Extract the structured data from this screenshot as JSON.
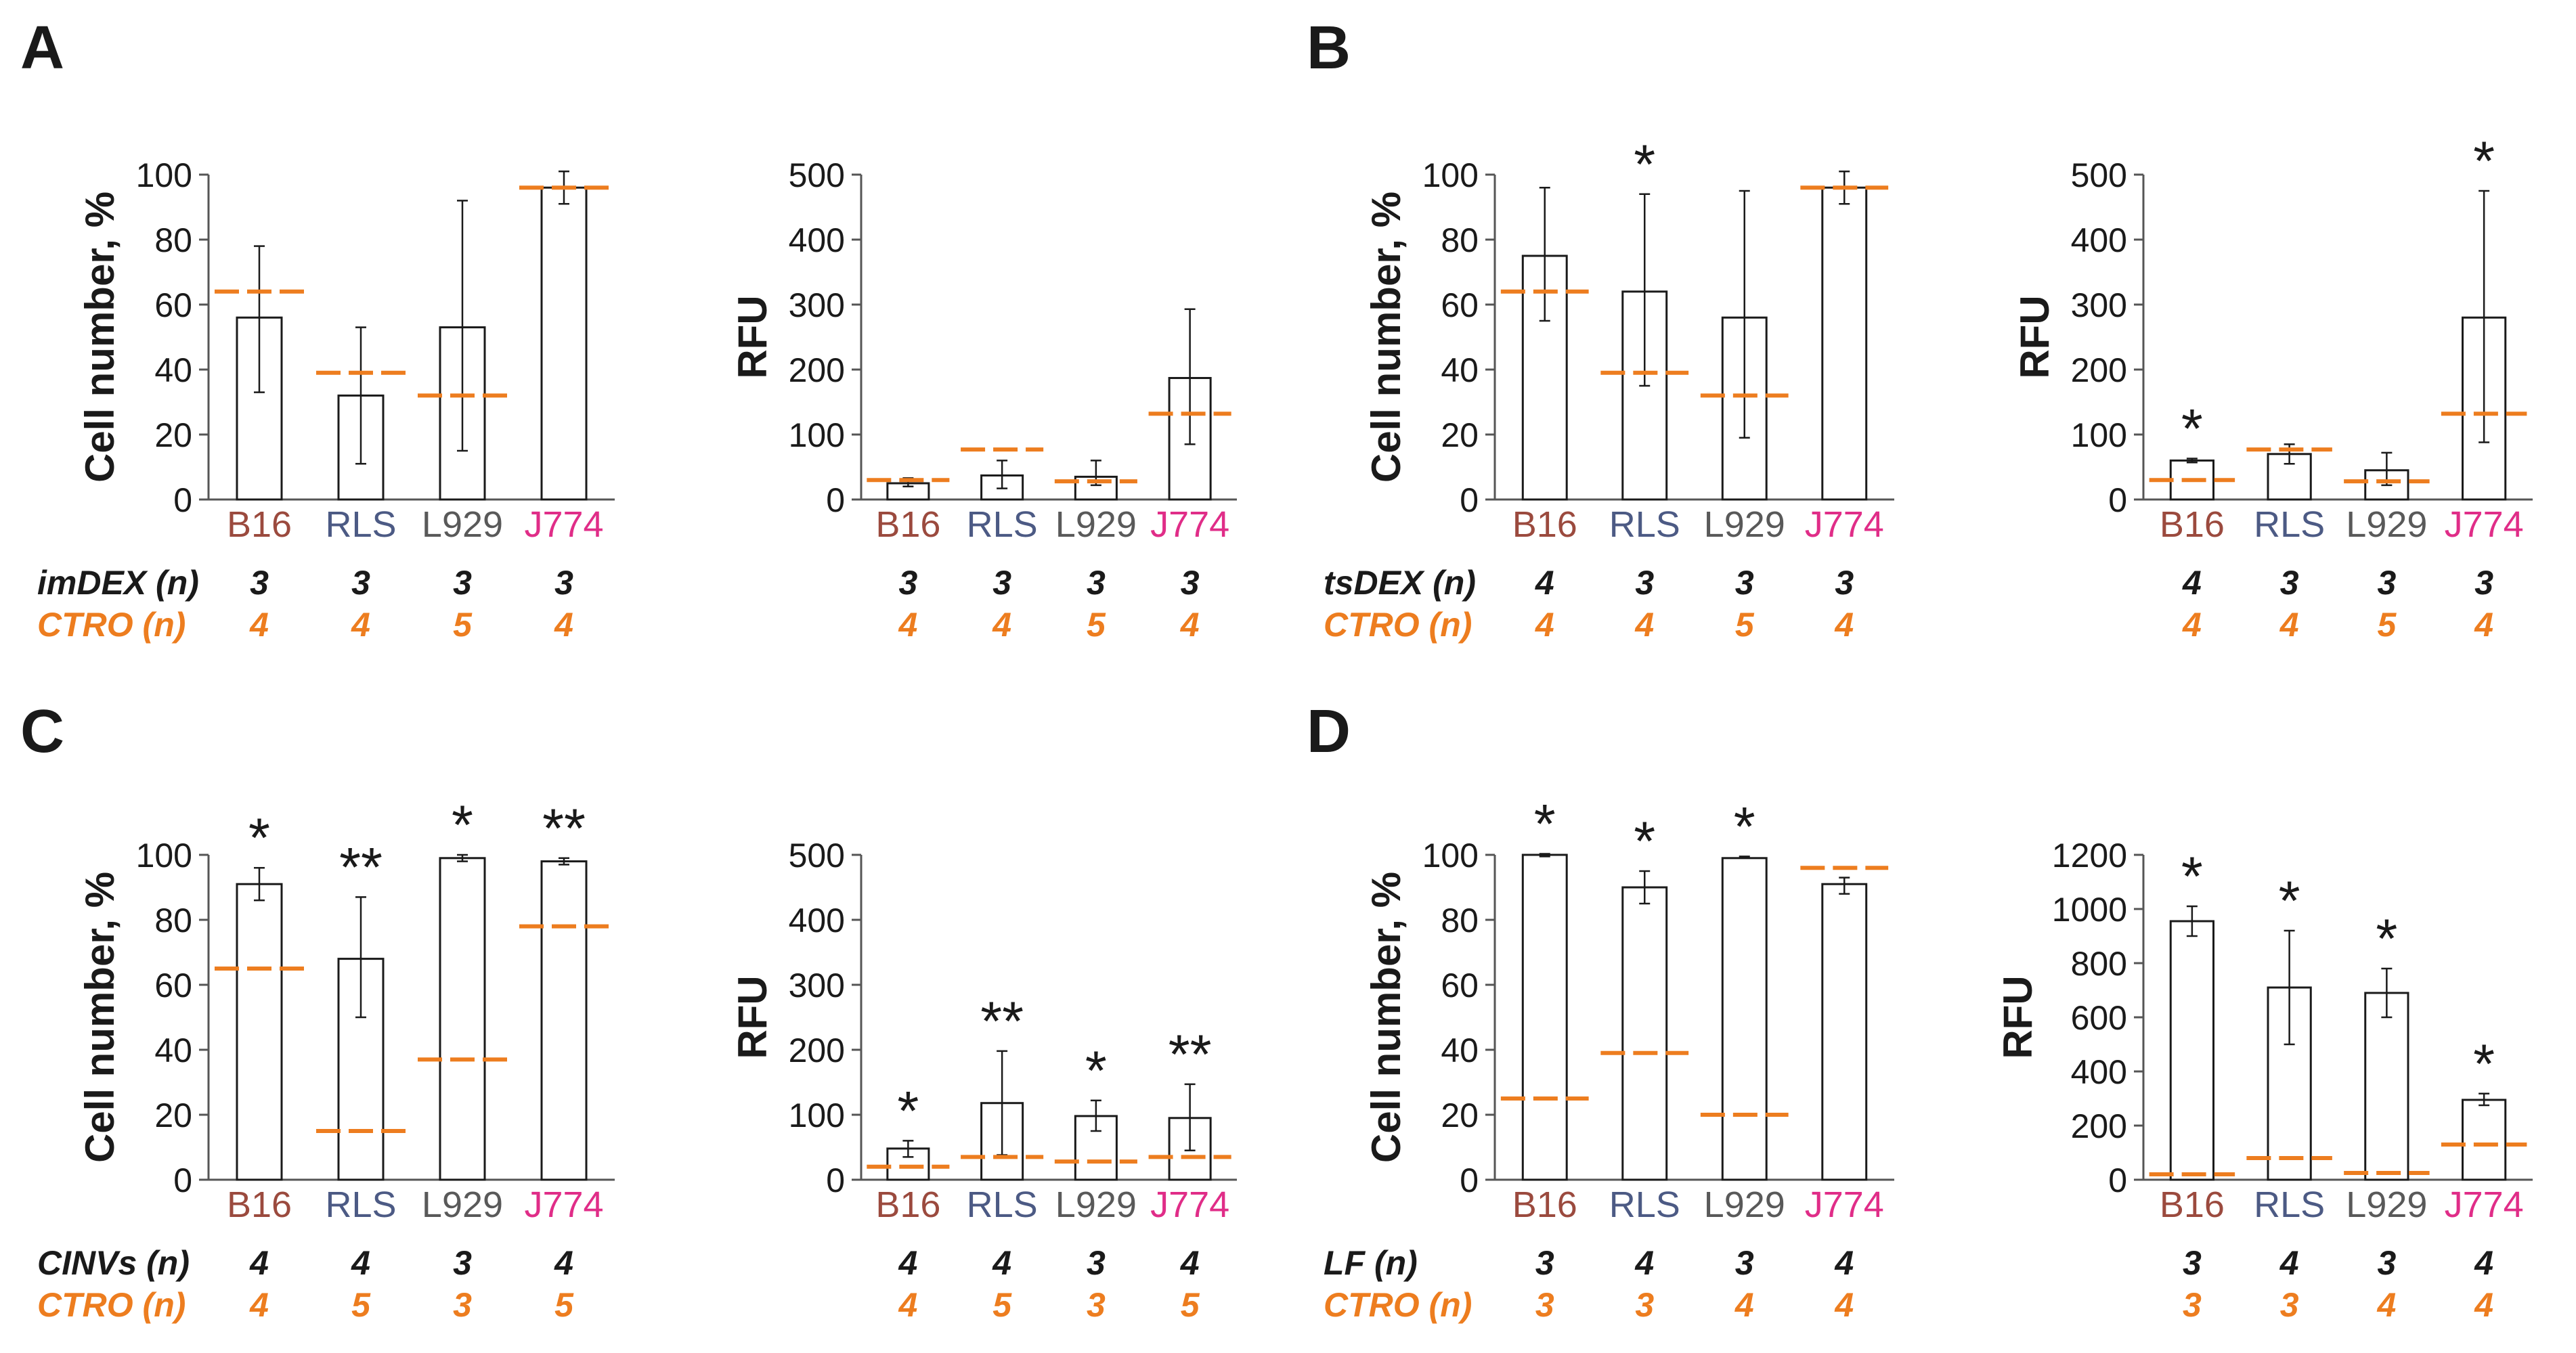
{
  "colors": {
    "bar": "#1a1a1a",
    "control": "#ed7d1f",
    "B16": "#9b4a3e",
    "RLS": "#4c5a84",
    "L929": "#595959",
    "J774": "#e02d88",
    "n_black": "#1a1a1a",
    "n_orange": "#ed7d1f"
  },
  "panels": [
    {
      "label": "A",
      "treatment_label": "imDEX (n)",
      "control_label": "CTRO (n)",
      "charts": [
        {
          "type": "bar",
          "ylabel": "Cell number, %",
          "ylim": [
            0,
            100
          ],
          "yticks": [
            "0",
            "20",
            "40",
            "60",
            "80",
            "100"
          ],
          "categories": [
            "B16",
            "RLS",
            "L929",
            "J774"
          ],
          "values": [
            56,
            32,
            53,
            96
          ],
          "err_low": [
            33,
            11,
            15,
            91
          ],
          "err_high": [
            78,
            53,
            92,
            101
          ],
          "control": [
            64,
            39,
            32,
            96
          ],
          "stars": [
            "",
            "",
            "",
            ""
          ],
          "n_treat": [
            "3",
            "3",
            "3",
            "3"
          ],
          "n_ctrl": [
            "4",
            "4",
            "5",
            "4"
          ]
        },
        {
          "type": "bar",
          "ylabel": "RFU",
          "ylim": [
            0,
            500
          ],
          "yticks": [
            "0",
            "100",
            "200",
            "300",
            "400",
            "500"
          ],
          "categories": [
            "B16",
            "RLS",
            "L929",
            "J774"
          ],
          "values": [
            25,
            37,
            35,
            187
          ],
          "err_low": [
            20,
            17,
            22,
            85
          ],
          "err_high": [
            33,
            60,
            60,
            293
          ],
          "control": [
            30,
            77,
            28,
            132
          ],
          "stars": [
            "",
            "",
            "",
            ""
          ],
          "n_treat": [
            "3",
            "3",
            "3",
            "3"
          ],
          "n_ctrl": [
            "4",
            "4",
            "5",
            "4"
          ]
        }
      ]
    },
    {
      "label": "B",
      "treatment_label": "tsDEX (n)",
      "control_label": "CTRO (n)",
      "charts": [
        {
          "type": "bar",
          "ylabel": "Cell number, %",
          "ylim": [
            0,
            100
          ],
          "yticks": [
            "0",
            "20",
            "40",
            "60",
            "80",
            "100"
          ],
          "categories": [
            "B16",
            "RLS",
            "L929",
            "J774"
          ],
          "values": [
            75,
            64,
            56,
            96
          ],
          "err_low": [
            55,
            35,
            19,
            91
          ],
          "err_high": [
            96,
            94,
            95,
            101
          ],
          "control": [
            64,
            39,
            32,
            96
          ],
          "stars": [
            "",
            "*",
            "",
            ""
          ],
          "n_treat": [
            "4",
            "3",
            "3",
            "3"
          ],
          "n_ctrl": [
            "4",
            "4",
            "5",
            "4"
          ]
        },
        {
          "type": "bar",
          "ylabel": "RFU",
          "ylim": [
            0,
            500
          ],
          "yticks": [
            "0",
            "100",
            "200",
            "300",
            "400",
            "500"
          ],
          "categories": [
            "B16",
            "RLS",
            "L929",
            "J774"
          ],
          "values": [
            60,
            70,
            45,
            280
          ],
          "err_low": [
            57,
            55,
            22,
            88
          ],
          "err_high": [
            63,
            85,
            72,
            475
          ],
          "control": [
            30,
            77,
            28,
            132
          ],
          "stars": [
            "*",
            "",
            "",
            "*"
          ],
          "n_treat": [
            "4",
            "3",
            "3",
            "3"
          ],
          "n_ctrl": [
            "4",
            "4",
            "5",
            "4"
          ]
        }
      ]
    },
    {
      "label": "C",
      "treatment_label": "CINVs (n)",
      "control_label": "CTRO (n)",
      "charts": [
        {
          "type": "bar",
          "ylabel": "Cell number, %",
          "ylim": [
            0,
            100
          ],
          "yticks": [
            "0",
            "20",
            "40",
            "60",
            "80",
            "100"
          ],
          "categories": [
            "B16",
            "RLS",
            "L929",
            "J774"
          ],
          "values": [
            91,
            68,
            99,
            98
          ],
          "err_low": [
            86,
            50,
            98,
            97
          ],
          "err_high": [
            96,
            87,
            100,
            99
          ],
          "control": [
            65,
            15,
            37,
            78
          ],
          "stars": [
            "*",
            "**",
            "*",
            "**"
          ],
          "n_treat": [
            "4",
            "4",
            "3",
            "4"
          ],
          "n_ctrl": [
            "4",
            "5",
            "3",
            "5"
          ]
        },
        {
          "type": "bar",
          "ylabel": "RFU",
          "ylim": [
            0,
            500
          ],
          "yticks": [
            "0",
            "100",
            "200",
            "300",
            "400",
            "500"
          ],
          "categories": [
            "B16",
            "RLS",
            "L929",
            "J774"
          ],
          "values": [
            48,
            118,
            98,
            95
          ],
          "err_low": [
            35,
            38,
            75,
            45
          ],
          "err_high": [
            60,
            198,
            122,
            147
          ],
          "control": [
            20,
            35,
            28,
            35
          ],
          "stars": [
            "*",
            "**",
            "*",
            "**"
          ],
          "n_treat": [
            "4",
            "4",
            "3",
            "4"
          ],
          "n_ctrl": [
            "4",
            "5",
            "3",
            "5"
          ]
        }
      ]
    },
    {
      "label": "D",
      "treatment_label": "LF (n)",
      "control_label": "CTRO (n)",
      "charts": [
        {
          "type": "bar",
          "ylabel": "Cell number, %",
          "ylim": [
            0,
            100
          ],
          "yticks": [
            "0",
            "20",
            "40",
            "60",
            "80",
            "100"
          ],
          "categories": [
            "B16",
            "RLS",
            "L929",
            "J774"
          ],
          "values": [
            100,
            90,
            99,
            91
          ],
          "err_low": [
            99.5,
            85,
            99,
            88
          ],
          "err_high": [
            100.3,
            95,
            99.5,
            93
          ],
          "control": [
            25,
            39,
            20,
            96
          ],
          "stars": [
            "*",
            "*",
            "*",
            ""
          ],
          "n_treat": [
            "3",
            "4",
            "3",
            "4"
          ],
          "n_ctrl": [
            "3",
            "3",
            "4",
            "4"
          ]
        },
        {
          "type": "bar",
          "ylabel": "RFU",
          "ylim": [
            0,
            1200
          ],
          "yticks": [
            "0",
            "200",
            "400",
            "600",
            "800",
            "1000",
            "1200"
          ],
          "categories": [
            "B16",
            "RLS",
            "L929",
            "J774"
          ],
          "values": [
            955,
            710,
            690,
            295
          ],
          "err_low": [
            900,
            500,
            600,
            275
          ],
          "err_high": [
            1010,
            920,
            780,
            318
          ],
          "control": [
            20,
            80,
            25,
            130
          ],
          "stars": [
            "*",
            "*",
            "*",
            "*"
          ],
          "n_treat": [
            "3",
            "4",
            "3",
            "4"
          ],
          "n_ctrl": [
            "3",
            "3",
            "4",
            "4"
          ]
        }
      ]
    }
  ]
}
